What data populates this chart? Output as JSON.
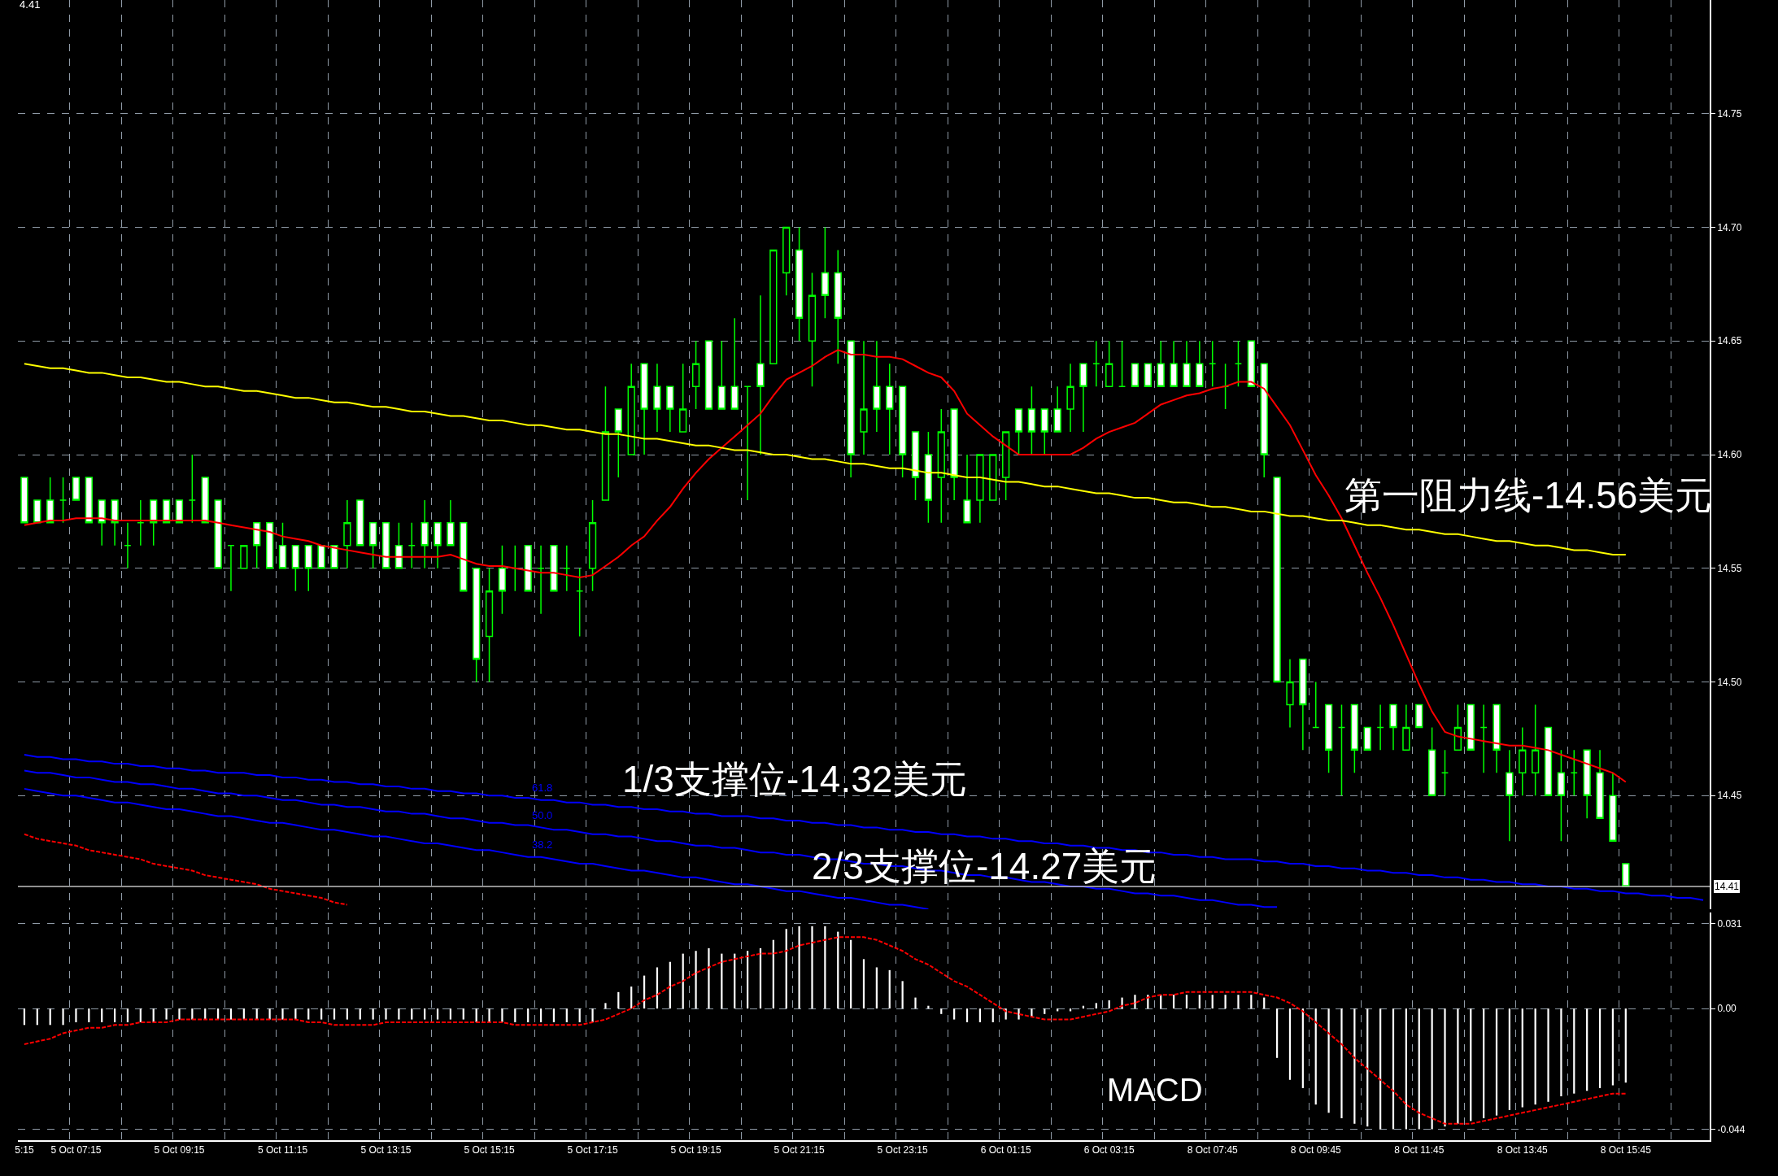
{
  "chart_data": [
    {
      "type": "candlestick",
      "title": "4.41",
      "color": "#00ff00",
      "tick_labels": "y",
      "grid": true,
      "legend": false,
      "categories": [
        null,
        null,
        null,
        null,
        null,
        null,
        null,
        null,
        null,
        null,
        null,
        null,
        null,
        null,
        null,
        null,
        null,
        null,
        null,
        null,
        null,
        null,
        null,
        null,
        null,
        null,
        null,
        null,
        null,
        null,
        null,
        null,
        null,
        null,
        null,
        null,
        null,
        null,
        null,
        null,
        null,
        null,
        null,
        null,
        null,
        null,
        null,
        null,
        null,
        null,
        null,
        null,
        null,
        null,
        null,
        null,
        null,
        null,
        null,
        null,
        null,
        null,
        null,
        null,
        null,
        null,
        null,
        null,
        null,
        null,
        null,
        null,
        null,
        null,
        null,
        null,
        null,
        null,
        null,
        null,
        null,
        null,
        null,
        null,
        null,
        null,
        null,
        null,
        null,
        null,
        null,
        null,
        null,
        null,
        null,
        null,
        null,
        null,
        null,
        null,
        null,
        null,
        null,
        null,
        null,
        null,
        null,
        null,
        null,
        null,
        null,
        null,
        null,
        null,
        null,
        null,
        null,
        null,
        null,
        null,
        null,
        null,
        null,
        null,
        null,
        null,
        null,
        null,
        null,
        null,
        null
      ],
      "ylim": [
        14.4,
        14.8
      ],
      "yticks": [
        {
          "value": 14.45,
          "label": "14.45"
        },
        {
          "value": 14.5,
          "label": "14.50"
        },
        {
          "value": 14.55,
          "label": "14.55"
        },
        {
          "value": 14.6,
          "label": "14.60"
        },
        {
          "value": 14.65,
          "label": "14.65"
        },
        {
          "value": 14.7,
          "label": "14.70"
        },
        {
          "value": 14.75,
          "label": "14.75"
        }
      ],
      "ohlc": [
        [
          14.59,
          14.59,
          14.57,
          14.57
        ],
        [
          14.58,
          14.58,
          14.57,
          14.57
        ],
        [
          14.58,
          14.59,
          14.57,
          14.57
        ],
        [
          14.58,
          14.59,
          14.57,
          14.58
        ],
        [
          14.59,
          14.59,
          14.58,
          14.58
        ],
        [
          14.59,
          14.59,
          14.57,
          14.57
        ],
        [
          14.58,
          14.58,
          14.56,
          14.57
        ],
        [
          14.58,
          14.58,
          14.56,
          14.57
        ],
        [
          14.56,
          14.57,
          14.55,
          14.56
        ],
        [
          14.57,
          14.58,
          14.56,
          14.57
        ],
        [
          14.58,
          14.58,
          14.56,
          14.57
        ],
        [
          14.58,
          14.58,
          14.57,
          14.57
        ],
        [
          14.58,
          14.58,
          14.57,
          14.57
        ],
        [
          14.58,
          14.6,
          14.57,
          14.58
        ],
        [
          14.59,
          14.59,
          14.57,
          14.57
        ],
        [
          14.58,
          14.58,
          14.55,
          14.55
        ],
        [
          14.56,
          14.56,
          14.54,
          14.56
        ],
        [
          14.55,
          14.56,
          14.55,
          14.56
        ],
        [
          14.57,
          14.57,
          14.55,
          14.56
        ],
        [
          14.57,
          14.57,
          14.55,
          14.55
        ],
        [
          14.56,
          14.57,
          14.55,
          14.55
        ],
        [
          14.56,
          14.56,
          14.54,
          14.55
        ],
        [
          14.56,
          14.56,
          14.54,
          14.55
        ],
        [
          14.56,
          14.56,
          14.55,
          14.55
        ],
        [
          14.56,
          14.56,
          14.55,
          14.55
        ],
        [
          14.56,
          14.58,
          14.55,
          14.57
        ],
        [
          14.58,
          14.58,
          14.56,
          14.56
        ],
        [
          14.57,
          14.57,
          14.55,
          14.56
        ],
        [
          14.57,
          14.57,
          14.55,
          14.55
        ],
        [
          14.56,
          14.57,
          14.55,
          14.55
        ],
        [
          14.56,
          14.57,
          14.55,
          14.56
        ],
        [
          14.57,
          14.58,
          14.55,
          14.56
        ],
        [
          14.57,
          14.57,
          14.55,
          14.56
        ],
        [
          14.57,
          14.58,
          14.56,
          14.56
        ],
        [
          14.57,
          14.57,
          14.54,
          14.54
        ],
        [
          14.55,
          14.55,
          14.5,
          14.51
        ],
        [
          14.52,
          14.55,
          14.5,
          14.54
        ],
        [
          14.55,
          14.56,
          14.53,
          14.54
        ],
        [
          14.55,
          14.56,
          14.54,
          14.55
        ],
        [
          14.56,
          14.56,
          14.54,
          14.54
        ],
        [
          14.55,
          14.56,
          14.53,
          14.55
        ],
        [
          14.56,
          14.56,
          14.54,
          14.54
        ],
        [
          14.55,
          14.56,
          14.54,
          14.55
        ],
        [
          14.54,
          14.55,
          14.52,
          14.54
        ],
        [
          14.55,
          14.58,
          14.54,
          14.57
        ],
        [
          14.58,
          14.63,
          14.58,
          14.61
        ],
        [
          14.62,
          14.62,
          14.59,
          14.61
        ],
        [
          14.6,
          14.64,
          14.6,
          14.63
        ],
        [
          14.64,
          14.64,
          14.6,
          14.62
        ],
        [
          14.63,
          14.64,
          14.61,
          14.62
        ],
        [
          14.63,
          14.63,
          14.61,
          14.62
        ],
        [
          14.61,
          14.64,
          14.61,
          14.62
        ],
        [
          14.63,
          14.65,
          14.62,
          14.64
        ],
        [
          14.65,
          14.65,
          14.62,
          14.62
        ],
        [
          14.63,
          14.65,
          14.62,
          14.62
        ],
        [
          14.63,
          14.66,
          14.62,
          14.62
        ],
        [
          14.63,
          14.63,
          14.58,
          14.63
        ],
        [
          14.64,
          14.67,
          14.6,
          14.63
        ],
        [
          14.64,
          14.69,
          14.64,
          14.69
        ],
        [
          14.68,
          14.7,
          14.67,
          14.7
        ],
        [
          14.69,
          14.7,
          14.65,
          14.66
        ],
        [
          14.65,
          14.68,
          14.63,
          14.67
        ],
        [
          14.68,
          14.7,
          14.66,
          14.67
        ],
        [
          14.68,
          14.69,
          14.64,
          14.66
        ],
        [
          14.65,
          14.65,
          14.59,
          14.6
        ],
        [
          14.61,
          14.65,
          14.6,
          14.62
        ],
        [
          14.63,
          14.65,
          14.61,
          14.62
        ],
        [
          14.63,
          14.64,
          14.6,
          14.62
        ],
        [
          14.63,
          14.63,
          14.59,
          14.6
        ],
        [
          14.61,
          14.61,
          14.58,
          14.59
        ],
        [
          14.6,
          14.61,
          14.57,
          14.58
        ],
        [
          14.59,
          14.62,
          14.57,
          14.61
        ],
        [
          14.62,
          14.62,
          14.58,
          14.59
        ],
        [
          14.58,
          14.6,
          14.57,
          14.57
        ],
        [
          14.58,
          14.6,
          14.57,
          14.6
        ],
        [
          14.58,
          14.6,
          14.58,
          14.6
        ],
        [
          14.59,
          14.61,
          14.58,
          14.61
        ],
        [
          14.62,
          14.62,
          14.6,
          14.61
        ],
        [
          14.62,
          14.63,
          14.6,
          14.61
        ],
        [
          14.62,
          14.62,
          14.6,
          14.61
        ],
        [
          14.62,
          14.63,
          14.61,
          14.61
        ],
        [
          14.62,
          14.64,
          14.61,
          14.63
        ],
        [
          14.64,
          14.64,
          14.61,
          14.63
        ],
        [
          14.64,
          14.65,
          14.63,
          14.64
        ],
        [
          14.63,
          14.65,
          14.63,
          14.64
        ],
        [
          14.63,
          14.65,
          14.63,
          14.63
        ],
        [
          14.64,
          14.64,
          14.63,
          14.63
        ],
        [
          14.64,
          14.64,
          14.63,
          14.63
        ],
        [
          14.64,
          14.65,
          14.63,
          14.63
        ],
        [
          14.64,
          14.65,
          14.63,
          14.63
        ],
        [
          14.64,
          14.65,
          14.63,
          14.63
        ],
        [
          14.64,
          14.65,
          14.63,
          14.63
        ],
        [
          14.64,
          14.65,
          14.63,
          14.64
        ],
        [
          14.63,
          14.64,
          14.62,
          14.63
        ],
        [
          14.64,
          14.65,
          14.63,
          14.64
        ],
        [
          14.65,
          14.65,
          14.63,
          14.63
        ],
        [
          14.64,
          14.64,
          14.59,
          14.6
        ],
        [
          14.59,
          14.59,
          14.5,
          14.5
        ],
        [
          14.49,
          14.51,
          14.48,
          14.5
        ],
        [
          14.51,
          14.51,
          14.47,
          14.49
        ],
        [
          14.48,
          14.5,
          14.48,
          14.48
        ],
        [
          14.49,
          14.49,
          14.46,
          14.47
        ],
        [
          14.48,
          14.49,
          14.45,
          14.48
        ],
        [
          14.49,
          14.49,
          14.46,
          14.47
        ],
        [
          14.48,
          14.48,
          14.47,
          14.47
        ],
        [
          14.48,
          14.49,
          14.47,
          14.48
        ],
        [
          14.49,
          14.49,
          14.47,
          14.48
        ],
        [
          14.47,
          14.49,
          14.47,
          14.48
        ],
        [
          14.49,
          14.49,
          14.48,
          14.48
        ],
        [
          14.47,
          14.48,
          14.45,
          14.45
        ],
        [
          14.46,
          14.47,
          14.45,
          14.46
        ],
        [
          14.47,
          14.49,
          14.47,
          14.48
        ],
        [
          14.49,
          14.49,
          14.47,
          14.47
        ],
        [
          14.48,
          14.49,
          14.46,
          14.48
        ],
        [
          14.49,
          14.49,
          14.46,
          14.47
        ],
        [
          14.46,
          14.47,
          14.43,
          14.45
        ],
        [
          14.46,
          14.48,
          14.45,
          14.47
        ],
        [
          14.46,
          14.49,
          14.45,
          14.47
        ],
        [
          14.48,
          14.48,
          14.45,
          14.45
        ],
        [
          14.46,
          14.47,
          14.43,
          14.45
        ],
        [
          14.46,
          14.47,
          14.45,
          14.46
        ],
        [
          14.47,
          14.47,
          14.44,
          14.45
        ],
        [
          14.46,
          14.47,
          14.44,
          14.44
        ],
        [
          14.45,
          14.46,
          14.43,
          14.43
        ],
        [
          14.42,
          14.42,
          14.41,
          14.41
        ],
        null,
        null,
        null,
        null,
        null,
        null
      ],
      "series": [
        {
          "type": "line",
          "color": "#ff0000",
          "values": [
            14.569,
            14.57,
            14.571,
            14.571,
            14.572,
            14.572,
            14.572,
            14.571,
            14.571,
            14.571,
            14.571,
            14.571,
            14.571,
            14.571,
            14.571,
            14.57,
            14.569,
            14.568,
            14.567,
            14.566,
            14.564,
            14.563,
            14.562,
            14.56,
            14.559,
            14.558,
            14.557,
            14.556,
            14.555,
            14.555,
            14.555,
            14.555,
            14.555,
            14.556,
            14.554,
            14.552,
            14.551,
            14.551,
            14.55,
            14.549,
            14.548,
            14.548,
            14.547,
            14.546,
            14.547,
            14.551,
            14.555,
            14.56,
            14.564,
            14.571,
            14.577,
            14.585,
            14.592,
            14.598,
            14.603,
            14.608,
            14.613,
            14.618,
            14.626,
            14.633,
            14.636,
            14.639,
            14.643,
            14.646,
            14.644,
            14.644,
            14.643,
            14.643,
            14.642,
            14.639,
            14.636,
            14.634,
            14.628,
            14.618,
            14.613,
            14.608,
            14.604,
            14.6,
            14.6,
            14.6,
            14.6,
            14.6,
            14.603,
            14.607,
            14.61,
            14.612,
            14.614,
            14.618,
            14.622,
            14.624,
            14.626,
            14.627,
            14.629,
            14.63,
            14.632,
            14.632,
            14.629,
            14.621,
            14.613,
            14.602,
            14.591,
            14.582,
            14.572,
            14.56,
            14.548,
            14.537,
            14.525,
            14.512,
            14.499,
            14.487,
            14.478,
            14.476,
            14.475,
            14.474,
            14.473,
            14.472,
            14.472,
            14.471,
            14.47,
            14.468,
            14.466,
            14.464,
            14.462,
            14.46,
            14.456,
            null,
            null,
            null,
            null,
            null,
            null
          ]
        },
        {
          "type": "line",
          "color": "#ffff00",
          "values": [
            14.64,
            14.639,
            14.638,
            14.638,
            14.637,
            14.636,
            14.636,
            14.635,
            14.634,
            14.634,
            14.633,
            14.632,
            14.632,
            14.631,
            14.63,
            14.63,
            14.629,
            14.628,
            14.628,
            14.627,
            14.626,
            14.625,
            14.625,
            14.624,
            14.623,
            14.623,
            14.622,
            14.621,
            14.621,
            14.62,
            14.619,
            14.619,
            14.618,
            14.617,
            14.617,
            14.616,
            14.615,
            14.615,
            14.614,
            14.613,
            14.613,
            14.612,
            14.611,
            14.611,
            14.61,
            14.609,
            14.609,
            14.608,
            14.607,
            14.607,
            14.606,
            14.605,
            14.604,
            14.604,
            14.603,
            14.602,
            14.602,
            14.601,
            14.6,
            14.6,
            14.599,
            14.598,
            14.598,
            14.597,
            14.596,
            14.596,
            14.595,
            14.594,
            14.594,
            14.593,
            14.592,
            14.592,
            14.591,
            14.59,
            14.59,
            14.589,
            14.588,
            14.588,
            14.587,
            14.586,
            14.586,
            14.585,
            14.584,
            14.583,
            14.583,
            14.582,
            14.581,
            14.581,
            14.58,
            14.579,
            14.579,
            14.578,
            14.577,
            14.577,
            14.576,
            14.575,
            14.575,
            14.574,
            14.573,
            14.573,
            14.572,
            14.571,
            14.571,
            14.57,
            14.569,
            14.569,
            14.568,
            14.567,
            14.567,
            14.566,
            14.565,
            14.565,
            14.564,
            14.563,
            14.562,
            14.562,
            14.561,
            14.56,
            14.56,
            14.559,
            14.558,
            14.558,
            14.557,
            14.556,
            14.556,
            null,
            null,
            null,
            null,
            null,
            null
          ]
        },
        {
          "type": "line",
          "name": "61.8",
          "color": "#0000ff",
          "values": [
            14.468,
            14.467,
            14.467,
            14.466,
            14.466,
            14.465,
            14.465,
            14.464,
            14.464,
            14.463,
            14.463,
            14.462,
            14.462,
            14.461,
            14.461,
            14.46,
            14.46,
            14.46,
            14.459,
            14.459,
            14.458,
            14.458,
            14.457,
            14.457,
            14.456,
            14.456,
            14.455,
            14.455,
            14.454,
            14.454,
            14.453,
            14.453,
            14.452,
            14.452,
            14.451,
            14.451,
            14.45,
            14.45,
            14.449,
            14.449,
            14.448,
            14.448,
            14.447,
            14.447,
            14.446,
            14.446,
            14.445,
            14.445,
            14.444,
            14.444,
            14.443,
            14.443,
            14.442,
            14.442,
            14.441,
            14.441,
            14.441,
            14.44,
            14.44,
            14.439,
            14.439,
            14.438,
            14.438,
            14.437,
            14.437,
            14.436,
            14.436,
            14.435,
            14.435,
            14.434,
            14.434,
            14.433,
            14.433,
            14.432,
            14.432,
            14.431,
            14.431,
            14.43,
            14.43,
            14.429,
            14.429,
            14.428,
            14.428,
            14.427,
            14.427,
            14.426,
            14.426,
            14.425,
            14.425,
            14.424,
            14.424,
            14.423,
            14.423,
            14.422,
            14.422,
            14.422,
            14.421,
            14.421,
            14.42,
            14.42,
            14.419,
            14.419,
            14.418,
            14.418,
            14.417,
            14.417,
            14.416,
            14.416,
            14.415,
            14.415,
            14.414,
            14.414,
            14.413,
            14.413,
            14.412,
            14.412,
            14.411,
            14.411,
            14.41,
            14.41,
            14.409,
            14.409,
            14.408,
            14.408,
            14.407,
            14.407,
            14.406,
            14.406,
            14.405,
            14.405,
            14.404
          ]
        },
        {
          "type": "line",
          "name": "50.0",
          "color": "#0000ff",
          "values": [
            14.461,
            14.46,
            14.46,
            14.459,
            14.458,
            14.458,
            14.457,
            14.456,
            14.456,
            14.455,
            14.455,
            14.454,
            14.453,
            14.453,
            14.452,
            14.451,
            14.451,
            14.45,
            14.45,
            14.449,
            14.448,
            14.448,
            14.447,
            14.446,
            14.446,
            14.445,
            14.445,
            14.444,
            14.443,
            14.443,
            14.442,
            14.442,
            14.441,
            14.44,
            14.44,
            14.439,
            14.438,
            14.438,
            14.437,
            14.437,
            14.436,
            14.435,
            14.435,
            14.434,
            14.433,
            14.433,
            14.432,
            14.432,
            14.431,
            14.43,
            14.43,
            14.429,
            14.428,
            14.428,
            14.427,
            14.427,
            14.426,
            14.425,
            14.425,
            14.424,
            14.424,
            14.423,
            14.422,
            14.422,
            14.421,
            14.42,
            14.42,
            14.419,
            14.419,
            14.418,
            14.417,
            14.417,
            14.416,
            14.415,
            14.415,
            14.414,
            14.414,
            14.413,
            14.412,
            14.412,
            14.411,
            14.41,
            14.41,
            14.409,
            14.409,
            14.408,
            14.407,
            14.407,
            14.406,
            14.406,
            14.405,
            14.404,
            14.404,
            14.403,
            14.402,
            14.402,
            14.401,
            14.401,
            null,
            null,
            null,
            null,
            null,
            null,
            null,
            null,
            null,
            null,
            null,
            null,
            null,
            null,
            null,
            null,
            null,
            null,
            null,
            null,
            null,
            null,
            null,
            null,
            null,
            null,
            null,
            null,
            null,
            null,
            null,
            null,
            null
          ]
        },
        {
          "type": "line",
          "name": "38.2",
          "color": "#0000ff",
          "values": [
            14.453,
            14.452,
            14.451,
            14.45,
            14.45,
            14.449,
            14.448,
            14.447,
            14.447,
            14.446,
            14.445,
            14.444,
            14.444,
            14.443,
            14.442,
            14.441,
            14.441,
            14.44,
            14.439,
            14.438,
            14.438,
            14.437,
            14.436,
            14.435,
            14.435,
            14.434,
            14.433,
            14.432,
            14.432,
            14.431,
            14.43,
            14.429,
            14.429,
            14.428,
            14.427,
            14.426,
            14.426,
            14.425,
            14.424,
            14.423,
            14.423,
            14.422,
            14.421,
            14.42,
            14.42,
            14.419,
            14.418,
            14.417,
            14.417,
            14.416,
            14.415,
            14.414,
            14.414,
            14.413,
            14.412,
            14.411,
            14.411,
            14.41,
            14.409,
            14.408,
            14.408,
            14.407,
            14.406,
            14.405,
            14.405,
            14.404,
            14.403,
            14.402,
            14.402,
            14.401,
            14.4,
            null,
            null,
            null,
            null,
            null,
            null,
            null,
            null,
            null,
            null,
            null,
            null,
            null,
            null,
            null,
            null,
            null,
            null,
            null,
            null,
            null,
            null,
            null,
            null,
            null,
            null,
            null,
            null,
            null,
            null,
            null,
            null,
            null,
            null,
            null,
            null,
            null,
            null,
            null,
            null,
            null,
            null,
            null,
            null,
            null,
            null,
            null,
            null,
            null,
            null,
            null,
            null,
            null,
            null,
            null,
            null,
            null,
            null,
            null,
            null
          ]
        },
        {
          "type": "line",
          "color": "#ff0000",
          "line_style": "dashed",
          "values": [
            14.433,
            14.431,
            14.43,
            14.429,
            14.428,
            14.426,
            14.425,
            14.424,
            14.423,
            14.422,
            14.42,
            14.419,
            14.418,
            14.417,
            14.415,
            14.414,
            14.413,
            14.412,
            14.411,
            14.409,
            14.408,
            14.407,
            14.406,
            14.405,
            14.403,
            14.402,
            null,
            null,
            null,
            null,
            null,
            null,
            null,
            null,
            null,
            null,
            null,
            null,
            null,
            null,
            null,
            null,
            null,
            null,
            null,
            null,
            null,
            null,
            null,
            null,
            null,
            null,
            null,
            null,
            null,
            null,
            null,
            null,
            null,
            null,
            null,
            null,
            null,
            null,
            null,
            null,
            null,
            null,
            null,
            null,
            null,
            null,
            null,
            null,
            null,
            null,
            null,
            null,
            null,
            null,
            null,
            null,
            null,
            null,
            null,
            null,
            null,
            null,
            null,
            null,
            null,
            null,
            null,
            null,
            null,
            null,
            null,
            null,
            null,
            null,
            null,
            null,
            null,
            null,
            null,
            null,
            null,
            null,
            null,
            null,
            null,
            null,
            null,
            null,
            null,
            null,
            null,
            null,
            null,
            null,
            null,
            null,
            null,
            null,
            null,
            null,
            null,
            null,
            null,
            null,
            null
          ]
        }
      ],
      "ref_lines": [
        {
          "axis": "y",
          "value": 14.41,
          "label": "14.41",
          "color": "#c0c0c0"
        }
      ],
      "annotations": [
        "第一阻力线-14.56美元",
        "1/3支撑位-14.32美元",
        "2/3支撑位-14.27美元"
      ]
    },
    {
      "type": "bar",
      "title": "MACD",
      "grid": true,
      "legend": false,
      "categories": [
        "5:15",
        null,
        null,
        null,
        "5 Oct 07:15",
        null,
        null,
        null,
        null,
        null,
        null,
        null,
        "5 Oct 09:15",
        null,
        null,
        null,
        null,
        null,
        null,
        null,
        "5 Oct 11:15",
        null,
        null,
        null,
        null,
        null,
        null,
        null,
        "5 Oct 13:15",
        null,
        null,
        null,
        null,
        null,
        null,
        null,
        "5 Oct 15:15",
        null,
        null,
        null,
        null,
        null,
        null,
        null,
        "5 Oct 17:15",
        null,
        null,
        null,
        null,
        null,
        null,
        null,
        "5 Oct 19:15",
        null,
        null,
        null,
        null,
        null,
        null,
        null,
        "5 Oct 21:15",
        null,
        null,
        null,
        null,
        null,
        null,
        null,
        "5 Oct 23:15",
        null,
        null,
        null,
        null,
        null,
        null,
        null,
        "6 Oct 01:15",
        null,
        null,
        null,
        null,
        null,
        null,
        null,
        "6 Oct 03:15",
        null,
        null,
        null,
        null,
        null,
        null,
        null,
        "8 Oct 07:45",
        null,
        null,
        null,
        null,
        null,
        null,
        null,
        "8 Oct 09:45",
        null,
        null,
        null,
        null,
        null,
        null,
        null,
        "8 Oct 11:45",
        null,
        null,
        null,
        null,
        null,
        null,
        null,
        "8 Oct 13:45",
        null,
        null,
        null,
        null,
        null,
        null,
        null,
        "8 Oct 15:45",
        null,
        null,
        null,
        null,
        null,
        null
      ],
      "ylim": [
        -0.048,
        0.035
      ],
      "yticks": [
        {
          "value": -0.044,
          "label": "-0.044"
        },
        {
          "value": 0,
          "label": "0.00"
        },
        {
          "value": 0.031,
          "label": "0.031"
        }
      ],
      "series": [
        {
          "type": "bar",
          "color": "#ffffff",
          "values": [
            -0.006,
            -0.006,
            -0.006,
            -0.006,
            -0.005,
            -0.005,
            -0.005,
            -0.005,
            -0.005,
            -0.005,
            -0.005,
            -0.004,
            -0.004,
            -0.004,
            -0.004,
            -0.004,
            -0.004,
            -0.004,
            -0.004,
            -0.004,
            -0.004,
            -0.004,
            -0.004,
            -0.004,
            -0.004,
            -0.004,
            -0.004,
            -0.004,
            -0.004,
            -0.004,
            -0.004,
            -0.004,
            -0.004,
            -0.004,
            -0.004,
            -0.005,
            -0.005,
            -0.005,
            -0.005,
            -0.005,
            -0.005,
            -0.005,
            -0.005,
            -0.005,
            -0.005,
            0.002,
            0.006,
            0.008,
            0.012,
            0.015,
            0.017,
            0.02,
            0.021,
            0.022,
            0.02,
            0.02,
            0.021,
            0.022,
            0.025,
            0.029,
            0.03,
            0.03,
            0.03,
            0.028,
            0.025,
            0.018,
            0.015,
            0.014,
            0.01,
            0.004,
            0.001,
            -0.002,
            -0.004,
            -0.005,
            -0.005,
            -0.005,
            -0.004,
            -0.004,
            -0.003,
            -0.002,
            -0.001,
            -0.001,
            0.001,
            0.002,
            0.003,
            0.004,
            0.005,
            0.005,
            0.005,
            0.005,
            0.005,
            0.005,
            0.005,
            0.005,
            0.005,
            0.005,
            0.004,
            -0.018,
            -0.026,
            -0.029,
            -0.035,
            -0.038,
            -0.04,
            -0.042,
            -0.043,
            -0.044,
            -0.044,
            -0.044,
            -0.044,
            -0.044,
            -0.043,
            -0.042,
            -0.041,
            -0.04,
            -0.039,
            -0.037,
            -0.036,
            -0.035,
            -0.034,
            -0.032,
            -0.031,
            -0.03,
            -0.029,
            -0.028,
            -0.027,
            null,
            null,
            null,
            null,
            null,
            null
          ]
        },
        {
          "type": "line",
          "color": "#ff0000",
          "line_style": "dashed",
          "values": [
            -0.013,
            -0.012,
            -0.011,
            -0.009,
            -0.008,
            -0.007,
            -0.007,
            -0.006,
            -0.006,
            -0.005,
            -0.005,
            -0.005,
            -0.004,
            -0.004,
            -0.004,
            -0.004,
            -0.004,
            -0.004,
            -0.004,
            -0.004,
            -0.004,
            -0.004,
            -0.005,
            -0.005,
            -0.006,
            -0.006,
            -0.006,
            -0.006,
            -0.005,
            -0.005,
            -0.005,
            -0.005,
            -0.005,
            -0.005,
            -0.005,
            -0.005,
            -0.005,
            -0.005,
            -0.006,
            -0.006,
            -0.006,
            -0.006,
            -0.006,
            -0.006,
            -0.005,
            -0.004,
            -0.002,
            0,
            0.003,
            0.005,
            0.008,
            0.01,
            0.013,
            0.015,
            0.017,
            0.018,
            0.019,
            0.02,
            0.02,
            0.021,
            0.023,
            0.024,
            0.025,
            0.026,
            0.026,
            0.026,
            0.025,
            0.023,
            0.021,
            0.018,
            0.016,
            0.013,
            0.01,
            0.008,
            0.005,
            0.002,
            -0.001,
            -0.002,
            -0.003,
            -0.004,
            -0.004,
            -0.004,
            -0.003,
            -0.002,
            -0.001,
            0.001,
            0.002,
            0.004,
            0.005,
            0.005,
            0.006,
            0.006,
            0.006,
            0.006,
            0.006,
            0.006,
            0.005,
            0.004,
            0.002,
            -0.001,
            -0.005,
            -0.009,
            -0.013,
            -0.018,
            -0.022,
            -0.026,
            -0.03,
            -0.035,
            -0.038,
            -0.04,
            -0.042,
            -0.042,
            -0.042,
            -0.041,
            -0.04,
            -0.039,
            -0.038,
            -0.037,
            -0.036,
            -0.035,
            -0.034,
            -0.033,
            -0.032,
            -0.031,
            -0.031,
            null,
            null,
            null,
            null,
            null,
            null
          ]
        }
      ]
    }
  ]
}
